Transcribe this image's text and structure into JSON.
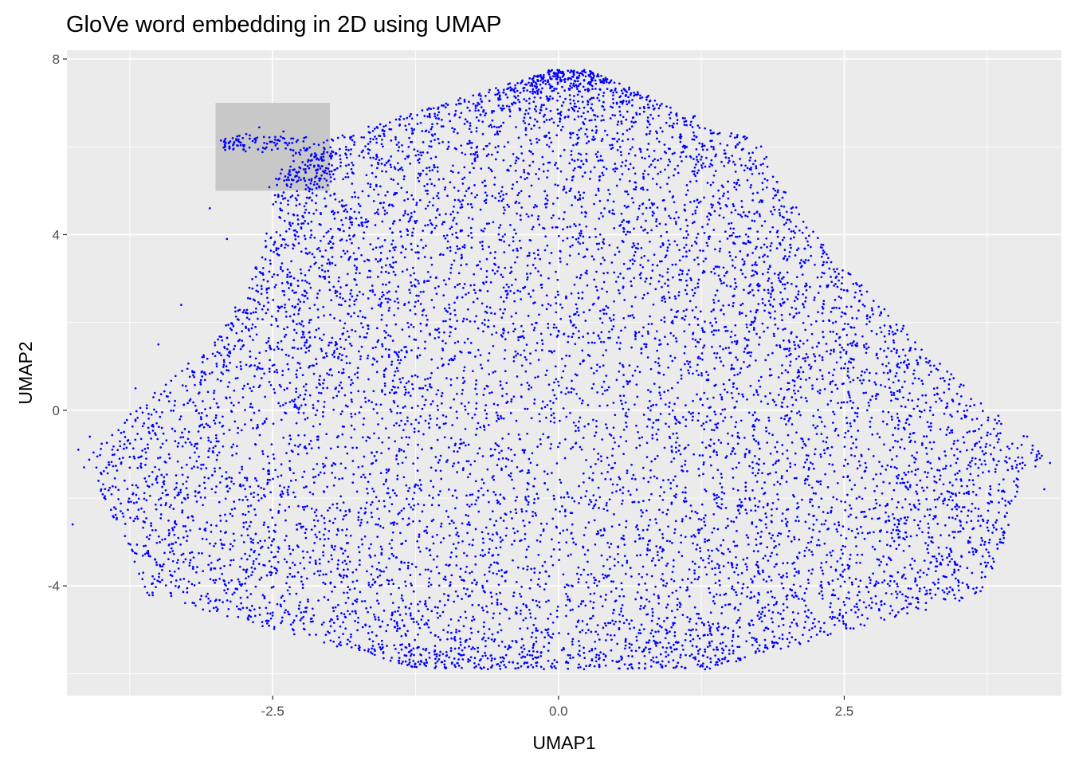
{
  "chart_data": {
    "type": "scatter",
    "title": "GloVe word embedding in 2D using UMAP",
    "xlabel": "UMAP1",
    "ylabel": "UMAP2",
    "xlim": [
      -4.3,
      4.4
    ],
    "ylim": [
      -6.5,
      8.2
    ],
    "x_ticks": [
      {
        "value": -2.5,
        "label": "-2.5"
      },
      {
        "value": 0.0,
        "label": "0.0"
      },
      {
        "value": 2.5,
        "label": "2.5"
      }
    ],
    "y_ticks": [
      {
        "value": 8,
        "label": "8"
      },
      {
        "value": 4,
        "label": "4"
      },
      {
        "value": 0,
        "label": "0"
      },
      {
        "value": -4,
        "label": "-4"
      }
    ],
    "minor_x": [
      -3.75,
      -1.25,
      1.25,
      3.75
    ],
    "minor_y": [
      6,
      2,
      -2,
      -6
    ],
    "grid": true,
    "highlight_rect": {
      "x": [
        -3.0,
        -2.0
      ],
      "y": [
        5.0,
        7.0
      ]
    },
    "point_color": "#0000ff",
    "panel_color": "#ebebeb",
    "grid_color": "#ffffff",
    "rect_color": "#c8c8c8",
    "series": [
      {
        "description_points": "approximately 10000 word vectors forming a dome-shaped cloud",
        "approx_extent": {
          "x": [
            -4.2,
            4.3
          ],
          "y": [
            -5.8,
            7.7
          ]
        }
      }
    ]
  }
}
